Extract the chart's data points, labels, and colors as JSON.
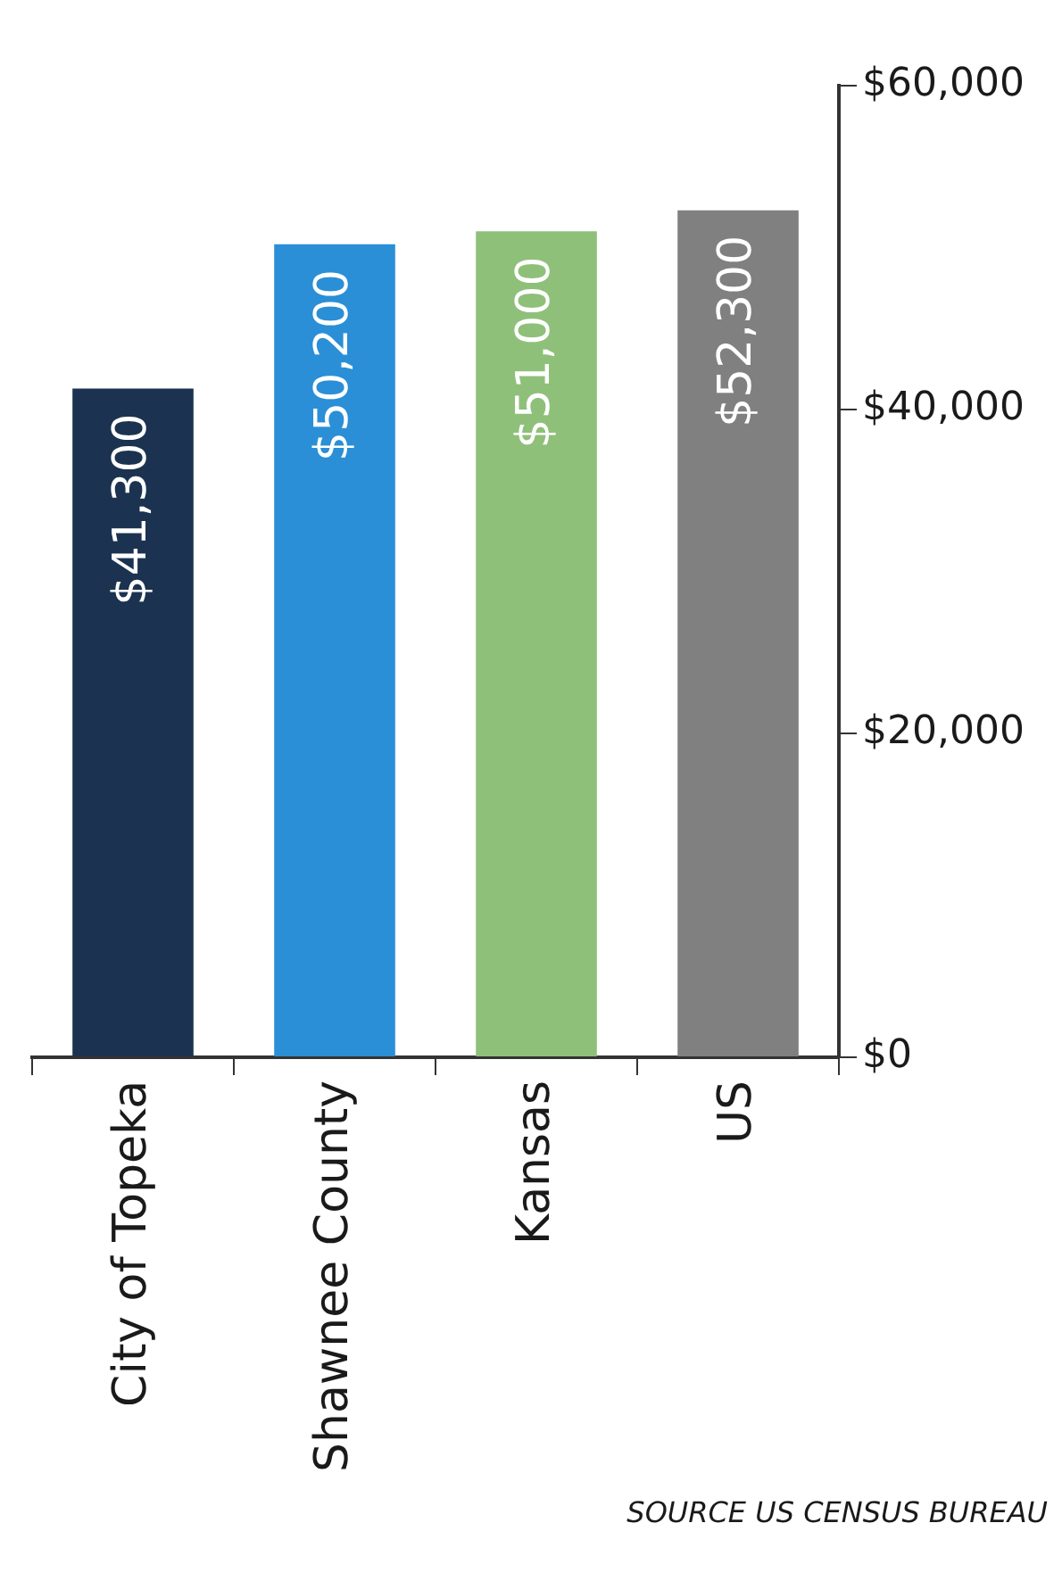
{
  "chart_data": {
    "type": "bar",
    "categories": [
      "City of Topeka",
      "Shawnee County",
      "Kansas",
      "US"
    ],
    "values": [
      41300,
      50200,
      51000,
      52300
    ],
    "colors": [
      "#1b3350",
      "#2a8fd6",
      "#8fc07a",
      "#808080"
    ],
    "value_labels": [
      "$41,300",
      "$50,200",
      "$51,000",
      "$52,300"
    ],
    "ylim": [
      0,
      60000
    ],
    "yticks": [
      {
        "value": 0,
        "label": "$0"
      },
      {
        "value": 20000,
        "label": "$20,000"
      },
      {
        "value": 40000,
        "label": "$40,000"
      },
      {
        "value": 60000,
        "label": "$60,000"
      }
    ],
    "grid": false,
    "annotations": [
      "SOURCE US CENSUS BUREAU"
    ]
  }
}
